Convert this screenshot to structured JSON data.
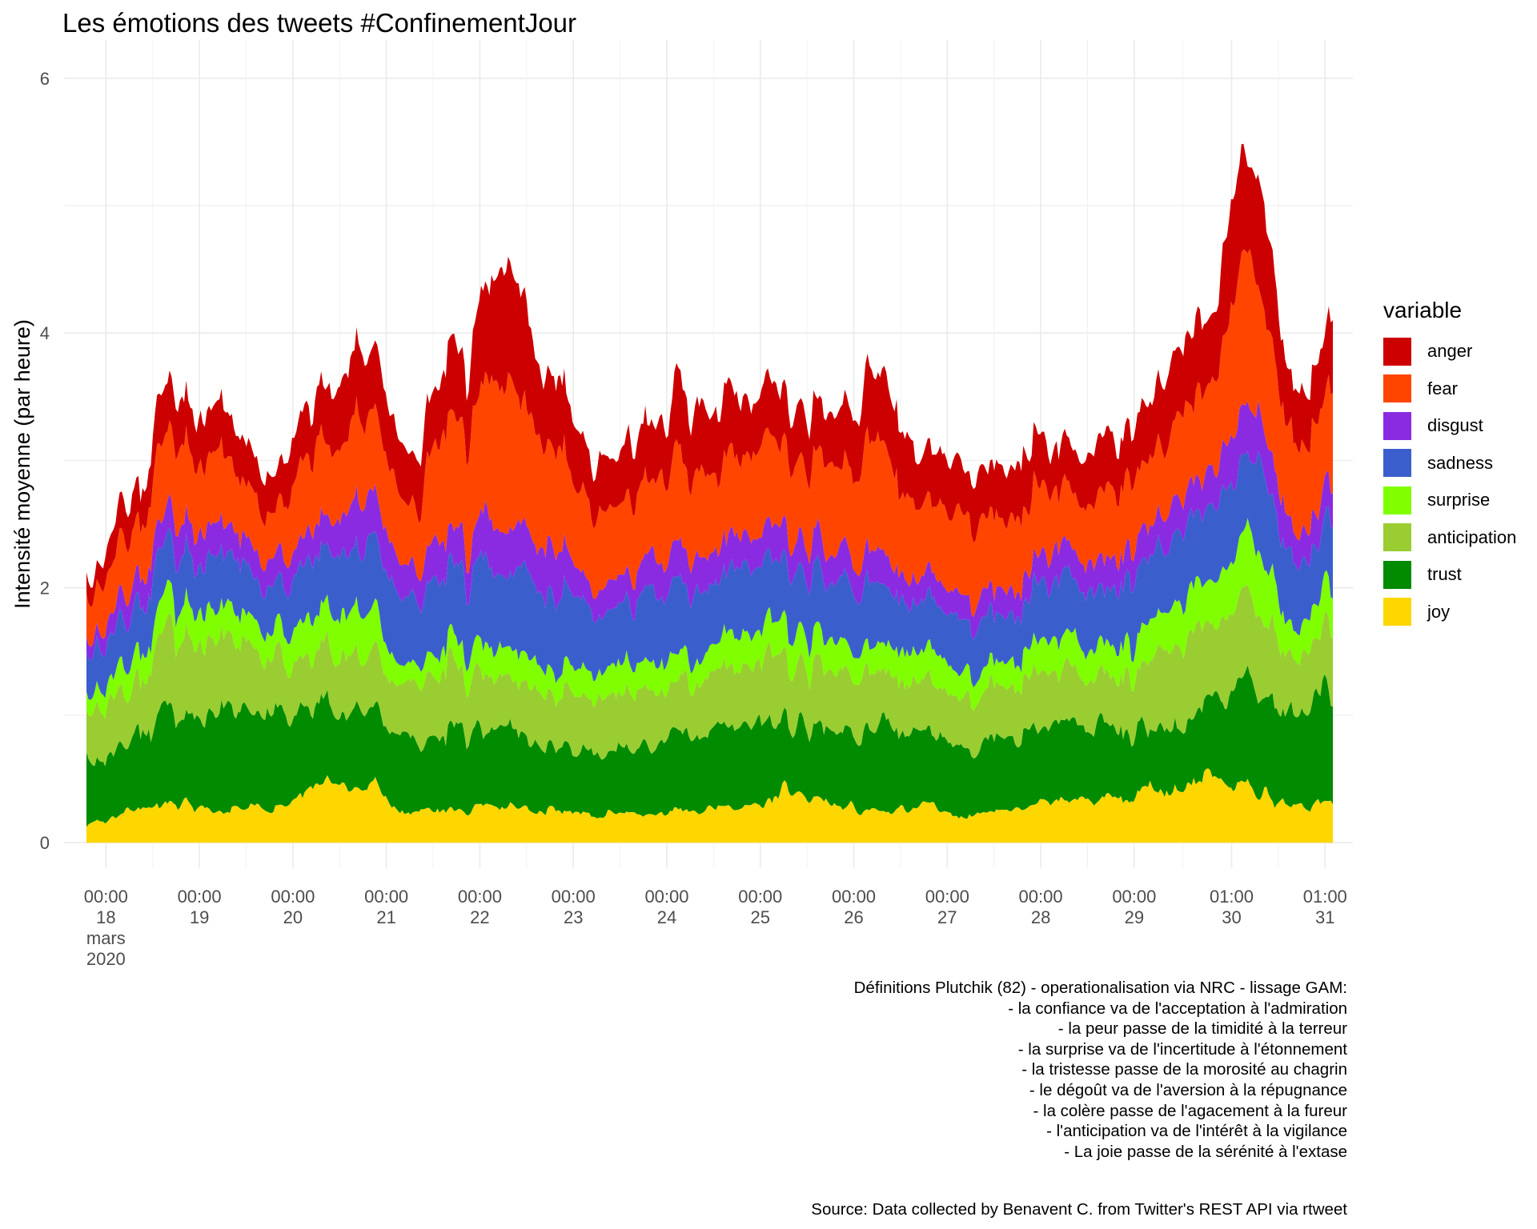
{
  "chart_data": {
    "type": "area",
    "stacked": true,
    "title": "Les émotions des tweets #ConfinementJour",
    "xlabel": "",
    "ylabel": "Intensité moyenne (par heure)",
    "x_range": [
      "2020-03-17 19:00",
      "2020-03-31 03:00"
    ],
    "ylim": [
      -0.2,
      6.3
    ],
    "y_ticks": [
      0,
      2,
      4,
      6
    ],
    "grid": true,
    "legend": {
      "title": "variable",
      "placement": "right"
    },
    "x_ticks": [
      {
        "x": "2020-03-18 00:00",
        "lines": [
          "00:00",
          "18",
          "mars",
          "2020"
        ]
      },
      {
        "x": "2020-03-19 00:00",
        "lines": [
          "00:00",
          "19"
        ]
      },
      {
        "x": "2020-03-20 00:00",
        "lines": [
          "00:00",
          "20"
        ]
      },
      {
        "x": "2020-03-21 00:00",
        "lines": [
          "00:00",
          "21"
        ]
      },
      {
        "x": "2020-03-22 00:00",
        "lines": [
          "00:00",
          "22"
        ]
      },
      {
        "x": "2020-03-23 00:00",
        "lines": [
          "00:00",
          "23"
        ]
      },
      {
        "x": "2020-03-24 00:00",
        "lines": [
          "00:00",
          "24"
        ]
      },
      {
        "x": "2020-03-25 00:00",
        "lines": [
          "00:00",
          "25"
        ]
      },
      {
        "x": "2020-03-26 00:00",
        "lines": [
          "00:00",
          "26"
        ]
      },
      {
        "x": "2020-03-27 00:00",
        "lines": [
          "00:00",
          "27"
        ]
      },
      {
        "x": "2020-03-28 00:00",
        "lines": [
          "00:00",
          "28"
        ]
      },
      {
        "x": "2020-03-29 00:00",
        "lines": [
          "00:00",
          "29"
        ]
      },
      {
        "x": "2020-03-30 01:00",
        "lines": [
          "01:00",
          "30"
        ]
      },
      {
        "x": "2020-03-31 01:00",
        "lines": [
          "01:00",
          "31"
        ]
      }
    ],
    "x": [
      "2020-03-17 19:00",
      "2020-03-18 06:00",
      "2020-03-18 18:00",
      "2020-03-19 06:00",
      "2020-03-19 18:00",
      "2020-03-20 06:00",
      "2020-03-20 18:00",
      "2020-03-21 06:00",
      "2020-03-21 18:00",
      "2020-03-22 06:00",
      "2020-03-22 18:00",
      "2020-03-23 06:00",
      "2020-03-23 18:00",
      "2020-03-24 06:00",
      "2020-03-24 18:00",
      "2020-03-25 06:00",
      "2020-03-25 18:00",
      "2020-03-26 06:00",
      "2020-03-26 18:00",
      "2020-03-27 06:00",
      "2020-03-27 18:00",
      "2020-03-28 06:00",
      "2020-03-28 18:00",
      "2020-03-29 06:00",
      "2020-03-29 18:00",
      "2020-03-30 06:00",
      "2020-03-30 18:00",
      "2020-03-31 03:00"
    ],
    "series": [
      {
        "name": "joy",
        "color": "#FFD700",
        "values": [
          0.15,
          0.24,
          0.3,
          0.25,
          0.27,
          0.45,
          0.48,
          0.24,
          0.25,
          0.3,
          0.25,
          0.22,
          0.22,
          0.26,
          0.26,
          0.4,
          0.33,
          0.23,
          0.3,
          0.22,
          0.25,
          0.32,
          0.35,
          0.42,
          0.5,
          0.42,
          0.28,
          0.3
        ]
      },
      {
        "name": "trust",
        "color": "#008B00",
        "values": [
          0.5,
          0.55,
          0.7,
          0.75,
          0.7,
          0.65,
          0.6,
          0.55,
          0.6,
          0.6,
          0.55,
          0.5,
          0.55,
          0.55,
          0.65,
          0.55,
          0.6,
          0.65,
          0.6,
          0.5,
          0.55,
          0.55,
          0.6,
          0.45,
          0.55,
          0.8,
          0.75,
          0.85
        ]
      },
      {
        "name": "anticipation",
        "color": "#9ACD32",
        "values": [
          0.4,
          0.4,
          0.6,
          0.55,
          0.45,
          0.4,
          0.45,
          0.45,
          0.5,
          0.4,
          0.4,
          0.45,
          0.45,
          0.4,
          0.45,
          0.5,
          0.45,
          0.4,
          0.4,
          0.4,
          0.45,
          0.4,
          0.4,
          0.55,
          0.6,
          0.6,
          0.45,
          0.5
        ]
      },
      {
        "name": "surprise",
        "color": "#7FFF00",
        "values": [
          0.15,
          0.2,
          0.25,
          0.25,
          0.2,
          0.3,
          0.35,
          0.15,
          0.2,
          0.25,
          0.2,
          0.2,
          0.25,
          0.2,
          0.25,
          0.3,
          0.25,
          0.2,
          0.25,
          0.2,
          0.2,
          0.25,
          0.25,
          0.3,
          0.35,
          0.45,
          0.25,
          0.3
        ]
      },
      {
        "name": "sadness",
        "color": "#3A5FCD",
        "values": [
          0.3,
          0.35,
          0.45,
          0.4,
          0.35,
          0.45,
          0.55,
          0.5,
          0.6,
          0.6,
          0.65,
          0.45,
          0.5,
          0.55,
          0.5,
          0.45,
          0.5,
          0.45,
          0.4,
          0.4,
          0.4,
          0.45,
          0.45,
          0.5,
          0.55,
          0.65,
          0.5,
          0.55
        ]
      },
      {
        "name": "disgust",
        "color": "#8A2BE2",
        "values": [
          0.1,
          0.2,
          0.25,
          0.25,
          0.2,
          0.25,
          0.35,
          0.25,
          0.3,
          0.35,
          0.35,
          0.2,
          0.25,
          0.25,
          0.25,
          0.25,
          0.25,
          0.25,
          0.2,
          0.2,
          0.2,
          0.25,
          0.25,
          0.25,
          0.3,
          0.4,
          0.25,
          0.3
        ]
      },
      {
        "name": "fear",
        "color": "#FF4500",
        "values": [
          0.3,
          0.45,
          0.6,
          0.55,
          0.4,
          0.6,
          0.65,
          0.55,
          0.8,
          1.1,
          0.8,
          0.55,
          0.6,
          0.7,
          0.65,
          0.65,
          0.7,
          0.8,
          0.55,
          0.6,
          0.55,
          0.45,
          0.55,
          0.55,
          0.7,
          1.1,
          0.65,
          0.75
        ]
      },
      {
        "name": "anger",
        "color": "#CD0000",
        "values": [
          0.15,
          0.3,
          0.4,
          0.4,
          0.3,
          0.4,
          0.5,
          0.4,
          0.55,
          0.9,
          0.55,
          0.4,
          0.45,
          0.55,
          0.5,
          0.4,
          0.45,
          0.55,
          0.4,
          0.4,
          0.4,
          0.35,
          0.4,
          0.45,
          0.55,
          0.8,
          0.4,
          0.5
        ]
      }
    ]
  },
  "caption_lines": [
    "Définitions Plutchik (82) - operationalisation via NRC - lissage GAM:",
    "- la confiance va de l'acceptation à l'admiration",
    "- la peur passe de la timidité à la terreur",
    "- la surprise va de l'incertitude à l'étonnement",
    "- la tristesse passe de la morosité au chagrin",
    "- le dégoût va de l'aversion à la répugnance",
    "- la colère passe de l'agacement à la fureur",
    "- l'anticipation va de l'intérêt à la vigilance",
    "- La joie passe de la sérénité à l'extase"
  ],
  "source": "Source: Data collected by Benavent C. from Twitter's REST API via rtweet"
}
